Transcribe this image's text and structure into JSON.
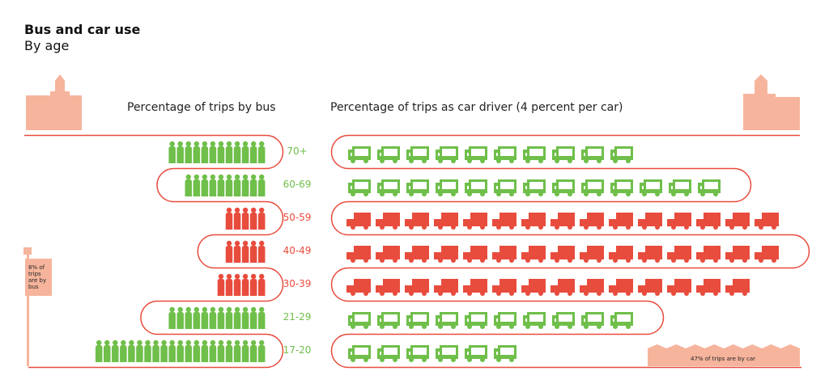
{
  "title": "Bus and car use",
  "subtitle": "By age",
  "colors": {
    "path": "#e84c3d",
    "bus_low": "#6fbf4a",
    "bus_high": "#e84c3d",
    "car_low": "#6fbf4a",
    "car_high": "#e84c3d",
    "building": "#f6b49c"
  },
  "chart_data": {
    "type": "bar",
    "categories": [
      "70+",
      "60-69",
      "50-59",
      "40-49",
      "30-39",
      "21-29",
      "17-20"
    ],
    "series": [
      {
        "name": "Percentage of trips by bus",
        "values": [
          12,
          10,
          5,
          5,
          6,
          12,
          21
        ]
      },
      {
        "name": "Percentage of trips as car driver (4 percent per car)",
        "values": [
          40,
          52,
          60,
          60,
          56,
          40,
          24
        ]
      }
    ],
    "highlight": [
      "low",
      "low",
      "high",
      "high",
      "high",
      "low",
      "low"
    ],
    "car_unit_percent": 4,
    "annotations": {
      "bus": "8% of trips are by bus",
      "car": "47% of trips are by car"
    }
  }
}
